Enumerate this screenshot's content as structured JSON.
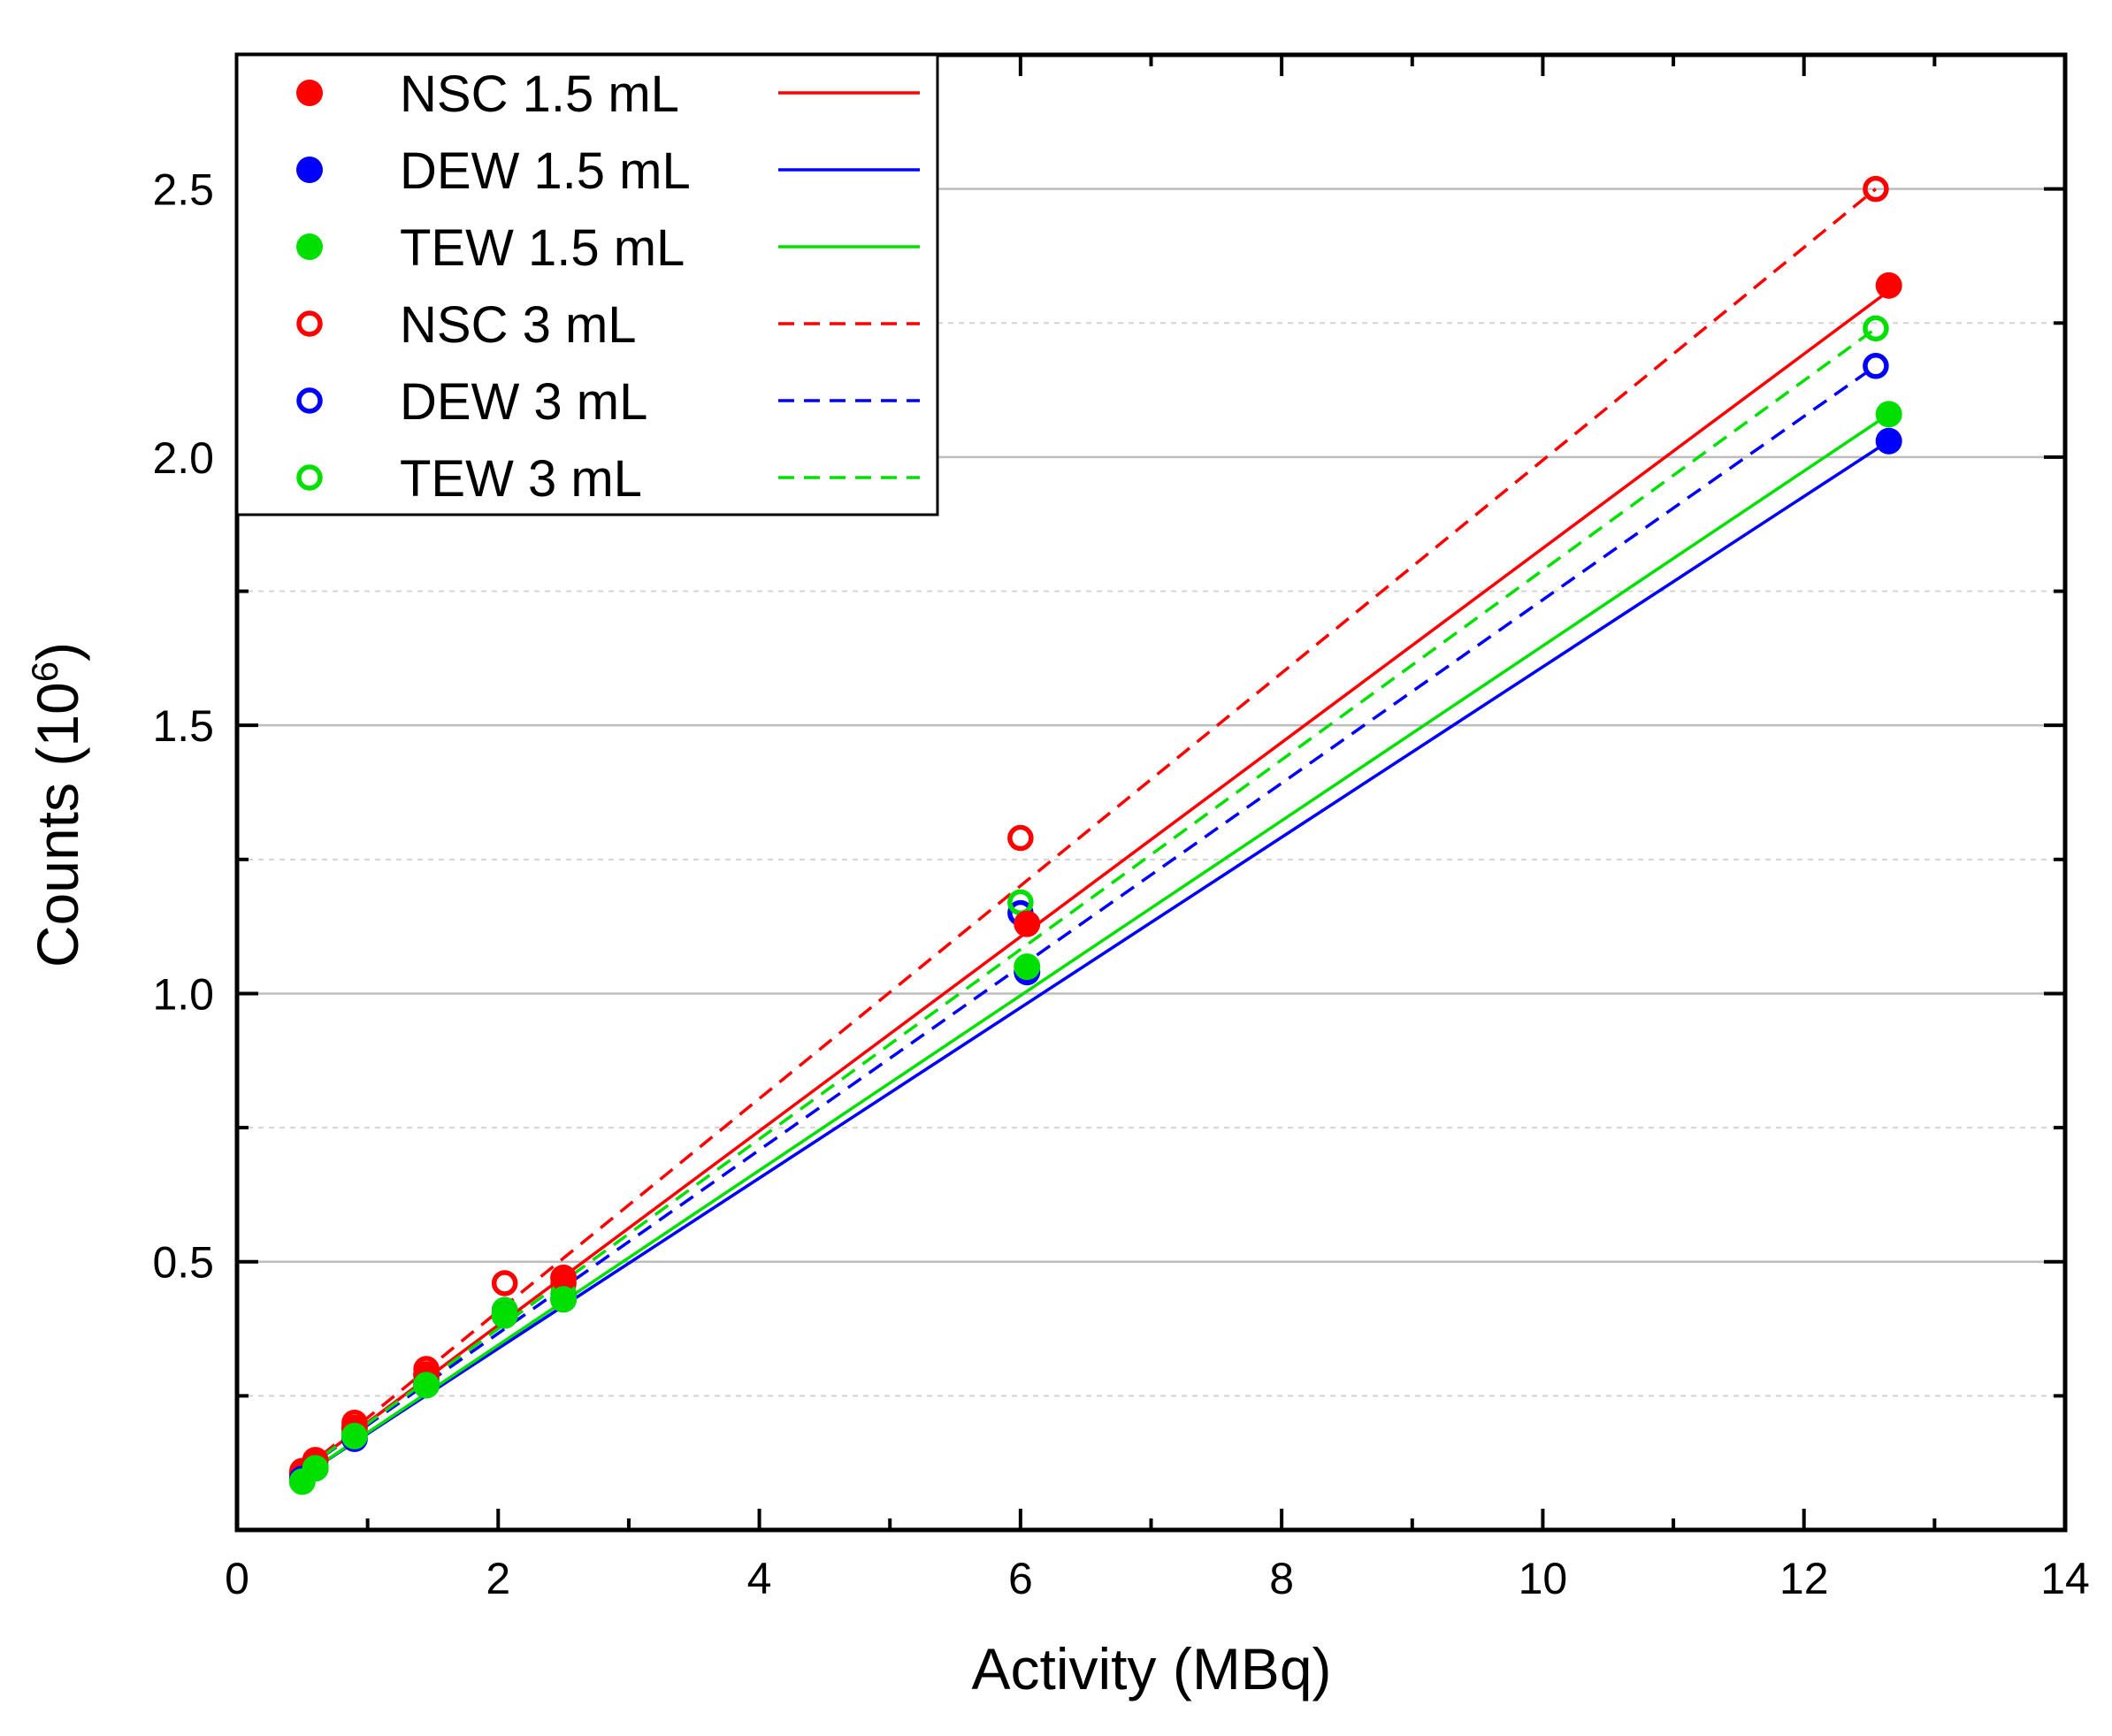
{
  "chart_data": {
    "type": "scatter",
    "title": "",
    "xlabel": "Activity (MBq)",
    "ylabel_base": "Counts (10",
    "ylabel_exponent": "6",
    "ylabel_close": ")",
    "xlim": [
      0,
      14
    ],
    "ylim": [
      0,
      2.75
    ],
    "x_ticks": [
      0,
      2,
      4,
      6,
      8,
      10,
      12,
      14
    ],
    "x_tick_labels": [
      "0",
      "2",
      "4",
      "6",
      "8",
      "10",
      "12",
      "14"
    ],
    "x_minor_ticks": [
      1,
      3,
      5,
      7,
      9,
      11,
      13
    ],
    "y_ticks": [
      0.5,
      1.0,
      1.5,
      2.0,
      2.5
    ],
    "y_tick_labels": [
      "0.5",
      "1.0",
      "1.5",
      "2.0",
      "2.5"
    ],
    "y_minor_ticks": [
      0.25,
      0.75,
      1.25,
      1.75,
      2.25
    ],
    "grid": {
      "major_y": true,
      "minor_y": true,
      "major_color": "#bdbdbd",
      "minor_color": "#d4d4d4"
    },
    "legend_position": "top-left",
    "series": [
      {
        "name": "NSC 1.5 mL",
        "color": "#ff0000",
        "marker": "filled-circle",
        "line": "solid",
        "x": [
          0.5,
          0.6,
          0.9,
          1.45,
          2.05,
          2.5,
          6.05,
          12.65
        ],
        "y": [
          0.105,
          0.13,
          0.19,
          0.29,
          0.4,
          0.47,
          1.13,
          2.32
        ],
        "fit": {
          "x": [
            0.5,
            12.65
          ],
          "y": [
            0.11,
            2.31
          ]
        }
      },
      {
        "name": "DEW 1.5 mL",
        "color": "#0000ff",
        "marker": "filled-circle",
        "line": "solid",
        "x": [
          0.5,
          0.6,
          0.9,
          1.45,
          2.05,
          2.5,
          6.05,
          12.65
        ],
        "y": [
          0.095,
          0.115,
          0.17,
          0.27,
          0.4,
          0.43,
          1.04,
          2.03
        ],
        "fit": {
          "x": [
            0.5,
            12.65
          ],
          "y": [
            0.1,
            2.03
          ]
        }
      },
      {
        "name": "TEW 1.5 mL",
        "color": "#00e000",
        "marker": "filled-circle",
        "line": "solid",
        "x": [
          0.5,
          0.6,
          0.9,
          1.45,
          2.05,
          2.5,
          6.05,
          12.65
        ],
        "y": [
          0.09,
          0.115,
          0.175,
          0.27,
          0.4,
          0.43,
          1.05,
          2.08
        ],
        "fit": {
          "x": [
            0.5,
            12.65
          ],
          "y": [
            0.1,
            2.08
          ]
        }
      },
      {
        "name": "NSC 3 mL",
        "color": "#ff0000",
        "marker": "open-circle",
        "line": "dashed",
        "x": [
          0.5,
          0.6,
          0.9,
          1.45,
          2.05,
          2.5,
          6.0,
          12.55
        ],
        "y": [
          0.11,
          0.13,
          0.2,
          0.3,
          0.46,
          0.46,
          1.29,
          2.5
        ],
        "fit": {
          "x": [
            0.5,
            12.55
          ],
          "y": [
            0.11,
            2.5
          ]
        }
      },
      {
        "name": "DEW 3 mL",
        "color": "#0000ff",
        "marker": "open-circle",
        "line": "dashed",
        "x": [
          0.5,
          0.6,
          0.9,
          1.45,
          2.05,
          2.5,
          6.0,
          12.55
        ],
        "y": [
          0.1,
          0.12,
          0.18,
          0.28,
          0.41,
          0.44,
          1.15,
          2.17
        ],
        "fit": {
          "x": [
            0.5,
            12.55
          ],
          "y": [
            0.11,
            2.17
          ]
        }
      },
      {
        "name": "TEW 3 mL",
        "color": "#00e000",
        "marker": "open-circle",
        "line": "dashed",
        "x": [
          0.5,
          0.6,
          0.9,
          1.45,
          2.05,
          2.5,
          6.0,
          12.55
        ],
        "y": [
          0.1,
          0.12,
          0.18,
          0.28,
          0.41,
          0.44,
          1.17,
          2.24
        ],
        "fit": {
          "x": [
            0.5,
            12.55
          ],
          "y": [
            0.11,
            2.24
          ]
        }
      }
    ]
  }
}
